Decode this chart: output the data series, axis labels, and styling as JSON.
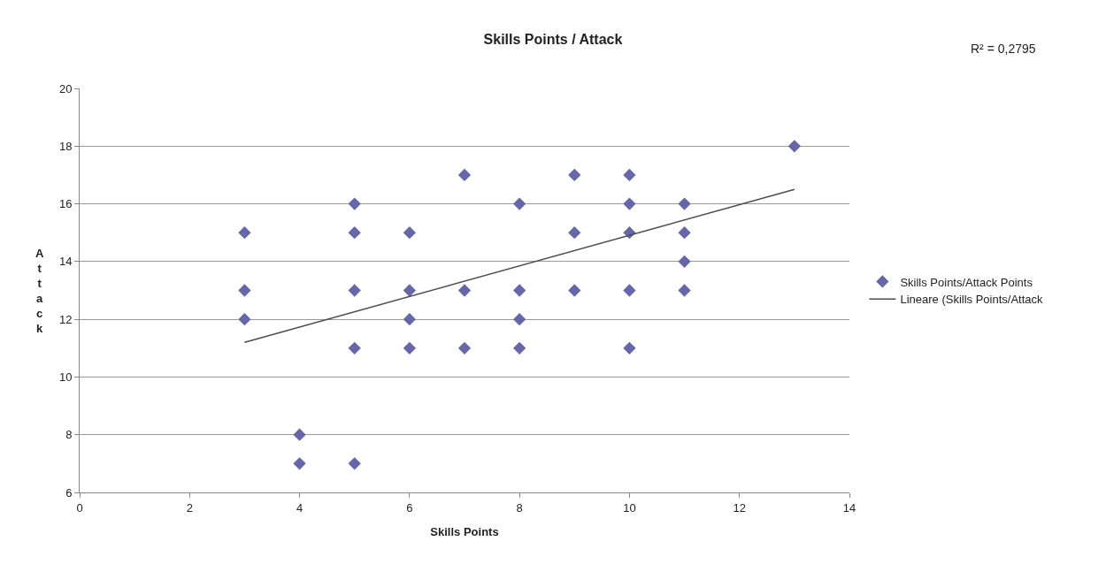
{
  "chart_data": {
    "type": "scatter",
    "title": "Skills Points / Attack",
    "xlabel": "Skills Points",
    "ylabel": "Attack",
    "annotations": [
      "R² = 0,2795"
    ],
    "series": [
      {
        "name": "Skills Points/Attack Points",
        "color": "#6666a8",
        "marker": "diamond",
        "x": [
          3,
          3,
          3,
          4,
          4,
          5,
          5,
          5,
          5,
          5,
          6,
          6,
          6,
          6,
          7,
          7,
          7,
          8,
          8,
          8,
          8,
          9,
          9,
          9,
          10,
          10,
          10,
          10,
          10,
          11,
          11,
          11,
          11,
          13
        ],
        "values": [
          15,
          13,
          12,
          8,
          7,
          16,
          15,
          13,
          11,
          7,
          15,
          13,
          12,
          11,
          17,
          13,
          11,
          16,
          13,
          12,
          11,
          17,
          15,
          13,
          17,
          16,
          15,
          13,
          11,
          16,
          15,
          14,
          13,
          18
        ]
      },
      {
        "name": "Lineare (Skills Points/Attack",
        "type": "line",
        "color": "#4d4d4d",
        "line_style": "solid",
        "marker": "none",
        "x": [
          3,
          13
        ],
        "values": [
          11.2,
          16.5
        ]
      }
    ],
    "xlim": [
      0,
      14
    ],
    "xticks": [
      0,
      2,
      4,
      6,
      8,
      10,
      12,
      14
    ],
    "ylim": [
      6,
      20
    ],
    "yticks": [
      6,
      8,
      10,
      12,
      14,
      16,
      18,
      20
    ],
    "grid": "y",
    "legend": "right"
  }
}
